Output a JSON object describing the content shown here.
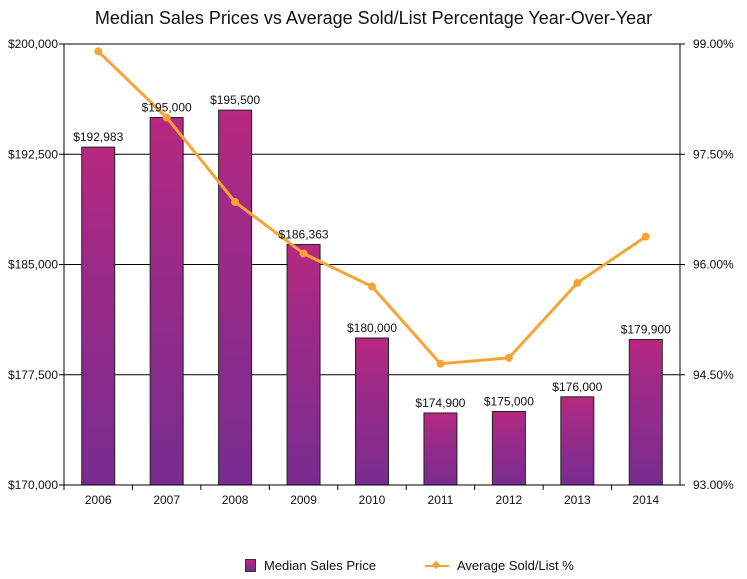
{
  "chart_data": {
    "title": "Median Sales Prices vs Average Sold/List Percentage Year-Over-Year",
    "type": "bar",
    "categories": [
      "2006",
      "2007",
      "2008",
      "2009",
      "2010",
      "2011",
      "2012",
      "2013",
      "2014"
    ],
    "series": [
      {
        "name": "Median Sales Price",
        "type": "bar",
        "axis": "left",
        "values": [
          192983,
          195000,
          195500,
          186363,
          180000,
          174900,
          175000,
          176000,
          179900
        ],
        "labels": [
          "$192,983",
          "$195,000",
          "$195,500",
          "$186,363",
          "$180,000",
          "$174,900",
          "$175,000",
          "$176,000",
          "$179,900"
        ],
        "color": "#a02a86"
      },
      {
        "name": "Average Sold/List %",
        "type": "line",
        "axis": "right",
        "values": [
          98.9,
          98.0,
          96.85,
          96.15,
          95.7,
          94.65,
          94.73,
          95.75,
          96.38
        ],
        "color": "#f7a436"
      }
    ],
    "y_left": {
      "range": [
        170000,
        200000
      ],
      "ticks": [
        170000,
        177500,
        185000,
        192500,
        200000
      ],
      "tick_labels": [
        "$170,000",
        "$177,500",
        "$185,000",
        "$192,500",
        "$200,000"
      ]
    },
    "y_right": {
      "range": [
        93.0,
        99.0
      ],
      "ticks": [
        93.0,
        94.5,
        96.0,
        97.5,
        99.0
      ],
      "tick_labels": [
        "93.00%",
        "94.50%",
        "96.00%",
        "97.50%",
        "99.00%"
      ]
    },
    "grid": true,
    "legend": "bottom"
  }
}
